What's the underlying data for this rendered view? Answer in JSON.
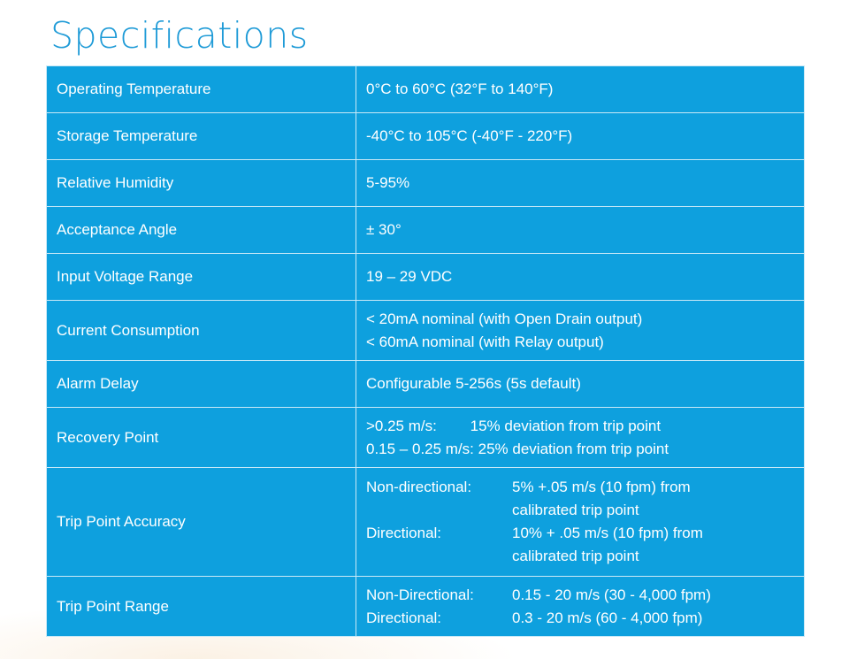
{
  "title": "Specifications",
  "specs": [
    {
      "label": "Operating Temperature",
      "lines": [
        "0°C to 60°C (32°F to 140°F)"
      ]
    },
    {
      "label": "Storage Temperature",
      "lines": [
        "-40°C to 105°C (-40°F - 220°F)"
      ]
    },
    {
      "label": "Relative Humidity",
      "lines": [
        "5-95%"
      ]
    },
    {
      "label": "Acceptance Angle",
      "lines": [
        "± 30°"
      ]
    },
    {
      "label": "Input Voltage Range",
      "lines": [
        "19 – 29 VDC"
      ]
    },
    {
      "label": "Current Consumption",
      "lines": [
        "< 20mA nominal (with Open Drain output)",
        "< 60mA nominal (with Relay output)"
      ]
    },
    {
      "label": "Alarm Delay",
      "lines": [
        "Configurable 5-256s (5s default)"
      ]
    },
    {
      "label": "Recovery Point",
      "lines": [
        ">0.25 m/s:        15% deviation from trip point",
        "0.15 – 0.25 m/s: 25% deviation from trip point"
      ]
    },
    {
      "label": "Trip Point Accuracy",
      "sub": [
        {
          "key": "Non-directional:",
          "lines": [
            "5% +.05 m/s (10 fpm) from",
            "calibrated trip point"
          ]
        },
        {
          "key": "Directional:",
          "lines": [
            "10% + .05 m/s (10 fpm) from",
            "calibrated trip point"
          ]
        }
      ]
    },
    {
      "label": "Trip Point Range",
      "sub": [
        {
          "key": "Non-Directional:",
          "lines": [
            "0.15 - 20 m/s (30 - 4,000 fpm)"
          ]
        },
        {
          "key": "Directional:",
          "lines": [
            "0.3 - 20 m/s (60 - 4,000 fpm)"
          ]
        }
      ]
    }
  ]
}
